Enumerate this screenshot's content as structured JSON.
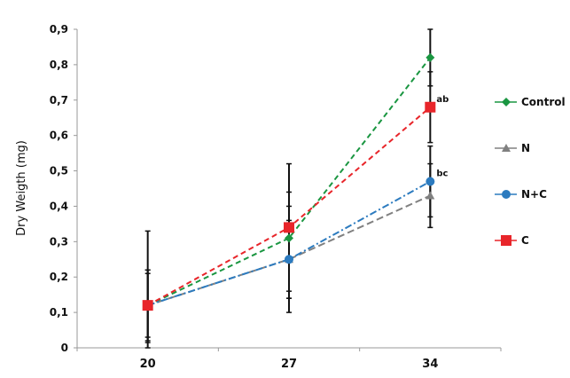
{
  "chart_data": {
    "type": "line",
    "title": "",
    "xlabel": "",
    "ylabel": "Dry Weigth (mg)",
    "categories": [
      "20",
      "27",
      "34"
    ],
    "ylim": [
      0,
      0.9
    ],
    "yticks": [
      "0",
      "0,1",
      "0,2",
      "0,3",
      "0,4",
      "0,5",
      "0,6",
      "0,7",
      "0,8",
      "0,9"
    ],
    "grid": false,
    "legend_position": "right",
    "series": [
      {
        "name": "Control",
        "color": "#1a9641",
        "marker": "diamond",
        "dash": "6,4",
        "values": [
          0.12,
          0.31,
          0.82
        ],
        "errors": [
          [
            0.02,
            0.22
          ],
          [
            0.16,
            0.44
          ],
          [
            0.74,
            0.9
          ]
        ]
      },
      {
        "name": "N",
        "color": "#808080",
        "marker": "triangle",
        "dash": "8,4",
        "values": [
          0.12,
          0.25,
          0.43
        ],
        "errors": [
          [
            0.03,
            0.21
          ],
          [
            0.1,
            0.4
          ],
          [
            0.34,
            0.52
          ]
        ]
      },
      {
        "name": "N+C",
        "color": "#2c7bbf",
        "marker": "circle",
        "dash": "8,3,2,3",
        "values": [
          0.12,
          0.25,
          0.47
        ],
        "errors": [
          [
            0.015,
            0.22
          ],
          [
            0.14,
            0.36
          ],
          [
            0.37,
            0.57
          ]
        ]
      },
      {
        "name": "C",
        "color": "#e8252a",
        "marker": "square",
        "dash": "6,4",
        "values": [
          0.12,
          0.34,
          0.68
        ],
        "errors": [
          [
            0.0,
            0.33
          ],
          [
            0.14,
            0.52
          ],
          [
            0.58,
            0.78
          ]
        ]
      }
    ],
    "annotations": [
      {
        "text": "ab",
        "category": "34",
        "y": 0.68
      },
      {
        "text": "bc",
        "category": "34",
        "y": 0.47
      }
    ]
  }
}
